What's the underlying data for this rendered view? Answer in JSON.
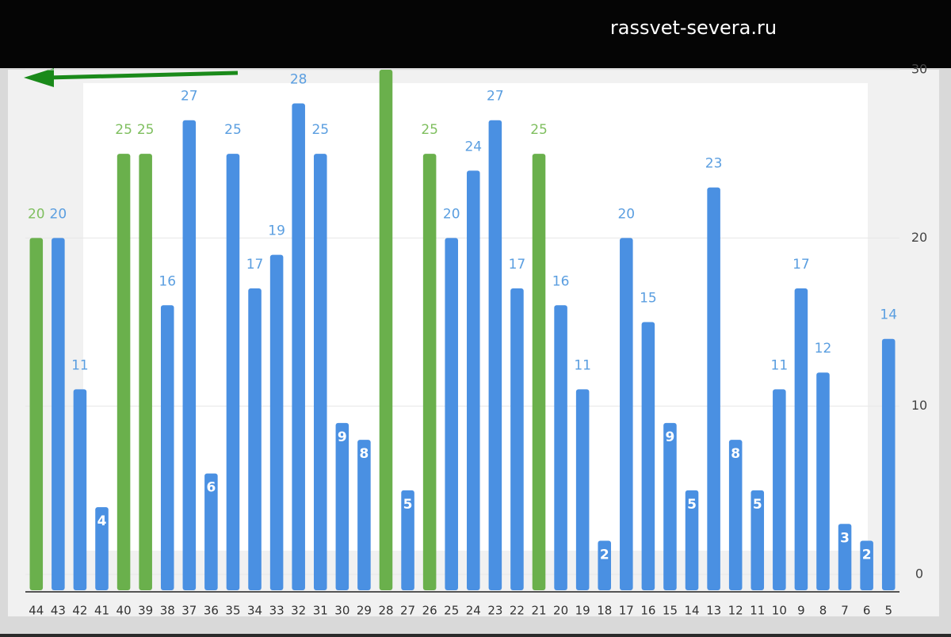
{
  "watermark": "rassvet-severa.ru",
  "chart_data": {
    "type": "bar",
    "categories": [
      "44",
      "43",
      "42",
      "41",
      "40",
      "39",
      "38",
      "37",
      "36",
      "35",
      "34",
      "33",
      "32",
      "31",
      "30",
      "29",
      "28",
      "27",
      "26",
      "25",
      "24",
      "23",
      "22",
      "21",
      "20",
      "19",
      "18",
      "17",
      "16",
      "15",
      "14",
      "13",
      "12",
      "11",
      "10",
      "9",
      "8",
      "7",
      "6",
      "5"
    ],
    "values": [
      20,
      20,
      11,
      4,
      25,
      25,
      16,
      27,
      6,
      25,
      17,
      19,
      28,
      25,
      9,
      8,
      30,
      5,
      25,
      20,
      24,
      27,
      17,
      25,
      16,
      11,
      2,
      20,
      15,
      9,
      5,
      23,
      8,
      5,
      11,
      17,
      12,
      3,
      2,
      14
    ],
    "value_labels": [
      "20",
      "20",
      "11",
      "4",
      "25",
      "25",
      "16",
      "27",
      "6",
      "25",
      "17",
      "19",
      "28",
      "25",
      "9",
      "8",
      null,
      "5",
      "25",
      "20",
      "24",
      "27",
      "17",
      "25",
      "16",
      "11",
      "2",
      "20",
      "15",
      "9",
      "5",
      "23",
      "8",
      "5",
      "11",
      "17",
      "12",
      "3",
      "2",
      "14"
    ],
    "colors": [
      "#6ab04c",
      "#4a90e2",
      "#4a90e2",
      "#4a90e2",
      "#6ab04c",
      "#6ab04c",
      "#4a90e2",
      "#4a90e2",
      "#4a90e2",
      "#4a90e2",
      "#4a90e2",
      "#4a90e2",
      "#4a90e2",
      "#4a90e2",
      "#4a90e2",
      "#4a90e2",
      "#6ab04c",
      "#4a90e2",
      "#6ab04c",
      "#4a90e2",
      "#4a90e2",
      "#4a90e2",
      "#4a90e2",
      "#6ab04c",
      "#4a90e2",
      "#4a90e2",
      "#4a90e2",
      "#4a90e2",
      "#4a90e2",
      "#4a90e2",
      "#4a90e2",
      "#4a90e2",
      "#4a90e2",
      "#4a90e2",
      "#4a90e2",
      "#4a90e2",
      "#4a90e2",
      "#4a90e2",
      "#4a90e2",
      "#4a90e2"
    ],
    "ylim": [
      0,
      30
    ],
    "yticks": [
      0,
      10,
      20,
      30
    ],
    "grid": true,
    "y_axis_side": "right"
  }
}
